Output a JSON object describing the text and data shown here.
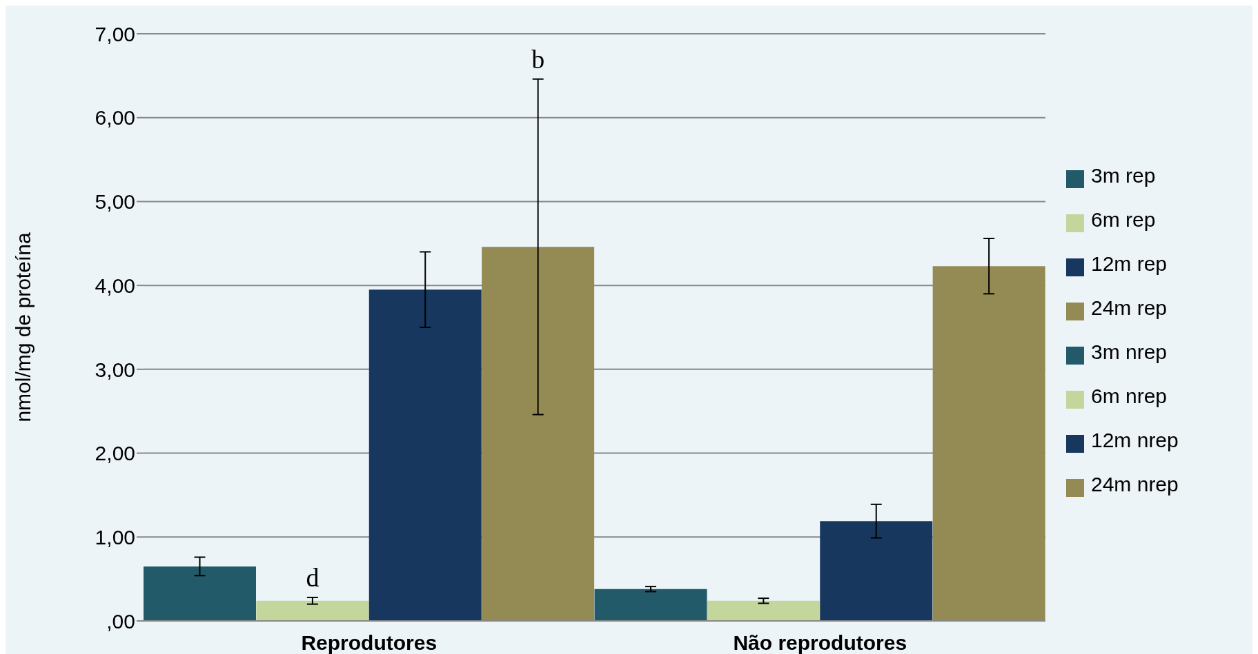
{
  "chart_data": {
    "type": "bar",
    "ylabel": "nmol/mg de proteína",
    "categories": [
      "Reprodutores",
      "Não reprodutores"
    ],
    "series": [
      {
        "name": "3m rep",
        "color": "#225a6a",
        "values": [
          0.65,
          null
        ],
        "errors": [
          0.11,
          null
        ]
      },
      {
        "name": "6m rep",
        "color": "#c3d69b",
        "values": [
          0.24,
          null
        ],
        "errors": [
          0.04,
          null
        ]
      },
      {
        "name": "12m rep",
        "color": "#17375e",
        "values": [
          3.95,
          null
        ],
        "errors": [
          0.45,
          null
        ]
      },
      {
        "name": "24m rep",
        "color": "#948a54",
        "values": [
          4.46,
          null
        ],
        "errors": [
          2.0,
          null
        ]
      },
      {
        "name": "3m nrep",
        "color": "#225a6a",
        "values": [
          null,
          0.38
        ],
        "errors": [
          null,
          0.03
        ]
      },
      {
        "name": "6m nrep",
        "color": "#c3d69b",
        "values": [
          null,
          0.24
        ],
        "errors": [
          null,
          0.03
        ]
      },
      {
        "name": "12m nrep",
        "color": "#17375e",
        "values": [
          null,
          1.19
        ],
        "errors": [
          null,
          0.2
        ]
      },
      {
        "name": "24m nrep",
        "color": "#948a54",
        "values": [
          null,
          4.23
        ],
        "errors": [
          null,
          0.33
        ]
      }
    ],
    "ylim": [
      0,
      7
    ],
    "yticks": [
      {
        "value": 0,
        "label": ",00"
      },
      {
        "value": 1,
        "label": "1,00"
      },
      {
        "value": 2,
        "label": "2,00"
      },
      {
        "value": 3,
        "label": "3,00"
      },
      {
        "value": 4,
        "label": "4,00"
      },
      {
        "value": 5,
        "label": "5,00"
      },
      {
        "value": 6,
        "label": "6,00"
      },
      {
        "value": 7,
        "label": "7,00"
      }
    ],
    "grid": "y",
    "legend": "right",
    "annotations": [
      {
        "text": "d",
        "x": "Reprodutores",
        "y": 0.24
      },
      "b"
    ]
  }
}
